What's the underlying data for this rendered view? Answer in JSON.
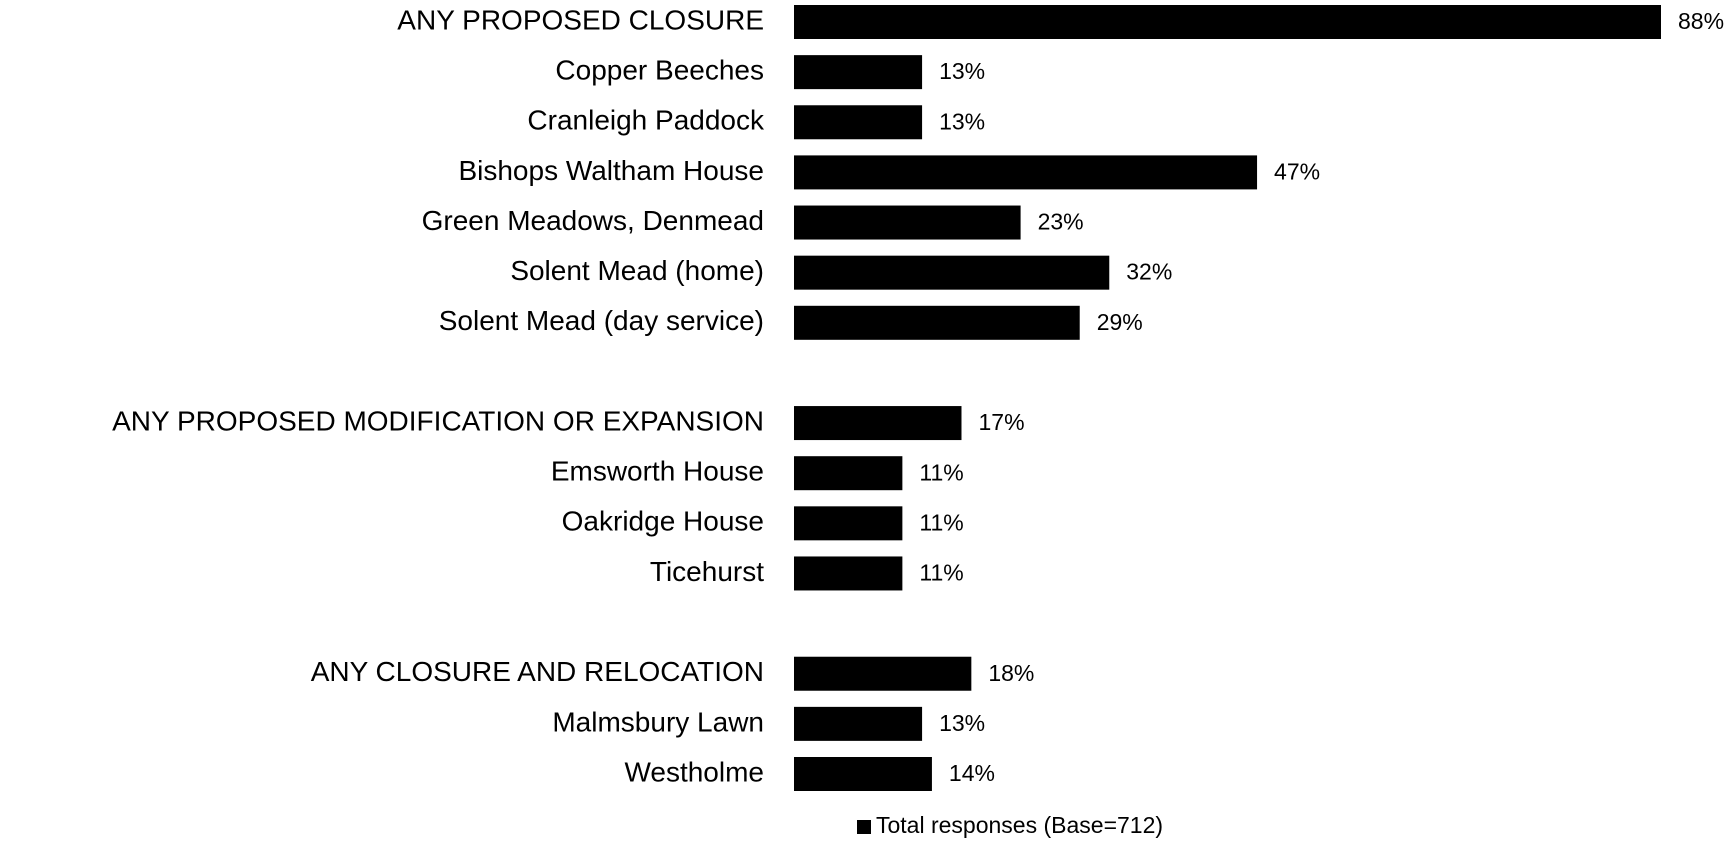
{
  "chart_data": {
    "type": "barh",
    "categories": [
      "ANY PROPOSED CLOSURE",
      "Copper Beeches",
      "Cranleigh Paddock",
      "Bishops Waltham House",
      "Green Meadows, Denmead",
      "Solent Mead (home)",
      "Solent Mead (day service)",
      null,
      "ANY PROPOSED MODIFICATION OR EXPANSION",
      "Emsworth House",
      "Oakridge House",
      "Ticehurst",
      null,
      "ANY CLOSURE AND RELOCATION",
      "Malmsbury Lawn",
      "Westholme"
    ],
    "series": [
      {
        "name": "Total responses (Base=712)",
        "color": "#000000",
        "values": [
          88,
          13,
          13,
          47,
          23,
          32,
          29,
          null,
          17,
          11,
          11,
          11,
          null,
          18,
          13,
          14
        ],
        "value_labels": [
          "88%",
          "13%",
          "13%",
          "47%",
          "23%",
          "32%",
          "29%",
          null,
          "17%",
          "11%",
          "11%",
          "11%",
          null,
          "18%",
          "13%",
          "14%"
        ]
      }
    ],
    "legend": "bottom"
  }
}
